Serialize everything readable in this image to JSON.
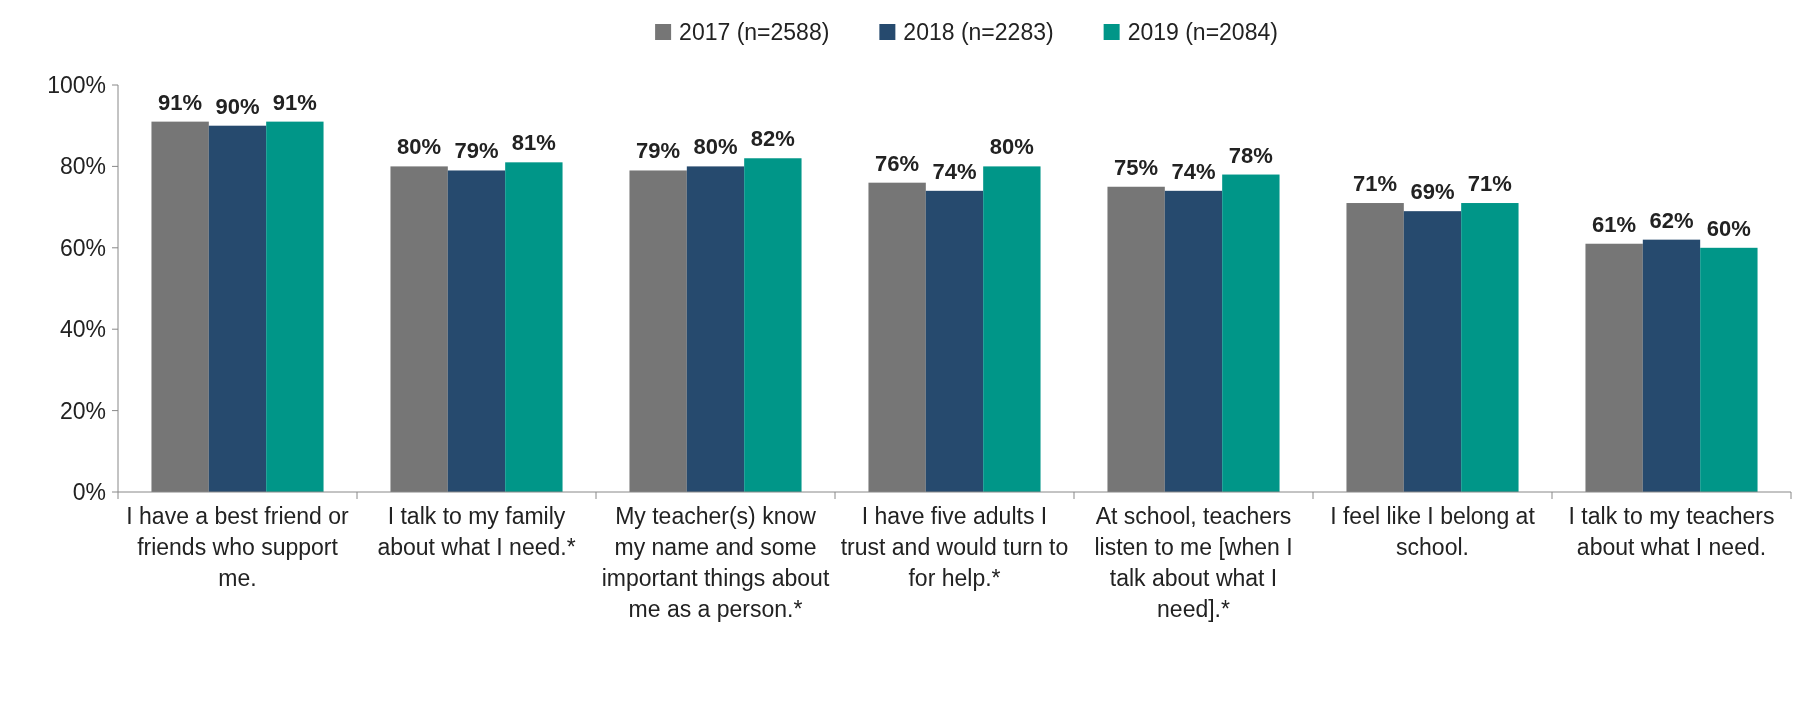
{
  "chart_data": {
    "type": "bar",
    "categories": [
      "I have a best friend or friends who support me.",
      "I talk to my family about what I need.*",
      "My teacher(s) know my name and some important things about me as a person.*",
      "I have five adults I trust and would turn to for help.*",
      "At school, teachers listen to me [when I talk about what I need].*",
      "I feel like I belong at school.",
      "I talk to my teachers about what I need."
    ],
    "series": [
      {
        "name": "2017 (n=2588)",
        "color": "#767676",
        "values": [
          91,
          80,
          79,
          76,
          75,
          71,
          61
        ],
        "value_labels": [
          "91%",
          "80%",
          "79%",
          "76%",
          "75%",
          "71%",
          "61%"
        ]
      },
      {
        "name": "2018 (n=2283)",
        "color": "#264a6e",
        "values": [
          90,
          79,
          80,
          74,
          74,
          69,
          62
        ],
        "value_labels": [
          "90%",
          "79%",
          "80%",
          "74%",
          "74%",
          "69%",
          "62%"
        ]
      },
      {
        "name": "2019 (n=2084)",
        "color": "#009688",
        "values": [
          91,
          81,
          82,
          80,
          78,
          71,
          60
        ],
        "value_labels": [
          "91%",
          "81%",
          "82%",
          "80%",
          "78%",
          "71%",
          "60%"
        ]
      }
    ],
    "ylim": [
      0,
      100
    ],
    "yticks": [
      {
        "value": 0,
        "label": "0%"
      },
      {
        "value": 20,
        "label": "20%"
      },
      {
        "value": 40,
        "label": "40%"
      },
      {
        "value": 60,
        "label": "60%"
      },
      {
        "value": 80,
        "label": "80%"
      },
      {
        "value": 100,
        "label": "100%"
      }
    ],
    "grid": false,
    "legend": "top"
  }
}
